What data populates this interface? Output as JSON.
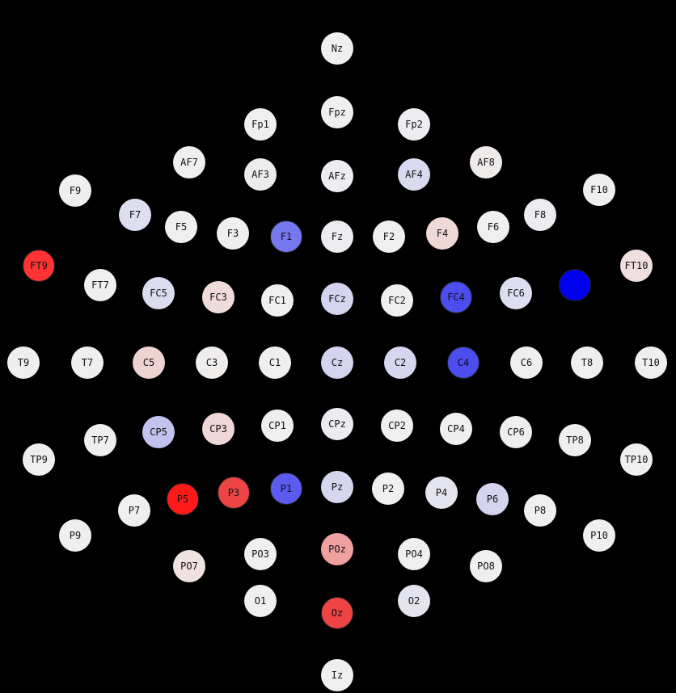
{
  "colors": {
    "background": "#000000",
    "neutral": "#efefef",
    "positive": "#ff2020",
    "negative": "#1010ff"
  },
  "electrodes": [
    {
      "label": "Nz",
      "fill": "#efefef"
    },
    {
      "label": "Fpz",
      "fill": "#efefef"
    },
    {
      "label": "Fp1",
      "fill": "#efefef"
    },
    {
      "label": "Fp2",
      "fill": "#ececf1"
    },
    {
      "label": "AF7",
      "fill": "#efefef"
    },
    {
      "label": "AF8",
      "fill": "#efebea"
    },
    {
      "label": "AF3",
      "fill": "#ececed"
    },
    {
      "label": "AFz",
      "fill": "#ececf1"
    },
    {
      "label": "AF4",
      "fill": "#d9d9ef"
    },
    {
      "label": "F9",
      "fill": "#efefef"
    },
    {
      "label": "F10",
      "fill": "#efefef"
    },
    {
      "label": "F7",
      "fill": "#dedef1"
    },
    {
      "label": "F8",
      "fill": "#ececf0"
    },
    {
      "label": "F5",
      "fill": "#efefef"
    },
    {
      "label": "F6",
      "fill": "#efefef"
    },
    {
      "label": "F3",
      "fill": "#efefef"
    },
    {
      "label": "F1",
      "fill": "#7777ef",
      "strong": true
    },
    {
      "label": "Fz",
      "fill": "#ececf0"
    },
    {
      "label": "F2",
      "fill": "#efefef"
    },
    {
      "label": "F4",
      "fill": "#efd9d6"
    },
    {
      "label": "FT9",
      "fill": "#ff3333",
      "strong": true
    },
    {
      "label": "FT10",
      "fill": "#efe0df"
    },
    {
      "label": "FT7",
      "fill": "#efefef"
    },
    {
      "label": "FC5",
      "fill": "#dcdcef"
    },
    {
      "label": "FC3",
      "fill": "#efdcda"
    },
    {
      "label": "FC1",
      "fill": "#efefef"
    },
    {
      "label": "FCz",
      "fill": "#d4d4ef"
    },
    {
      "label": "FC2",
      "fill": "#efefef"
    },
    {
      "label": "FC4",
      "fill": "#4c4cef",
      "strong": true
    },
    {
      "label": "FC6",
      "fill": "#dedef1"
    },
    {
      "label": "",
      "fill": "#0000ee",
      "strong": true
    },
    {
      "label": "T9",
      "fill": "#efefef"
    },
    {
      "label": "T7",
      "fill": "#efefef"
    },
    {
      "label": "C5",
      "fill": "#efd2d2"
    },
    {
      "label": "C3",
      "fill": "#efecec"
    },
    {
      "label": "C1",
      "fill": "#efefef"
    },
    {
      "label": "Cz",
      "fill": "#d4d4ef"
    },
    {
      "label": "C2",
      "fill": "#d6d6ef"
    },
    {
      "label": "C4",
      "fill": "#4c4cef",
      "strong": true
    },
    {
      "label": "C6",
      "fill": "#efefef"
    },
    {
      "label": "T8",
      "fill": "#efefef"
    },
    {
      "label": "T10",
      "fill": "#efefef"
    },
    {
      "label": "TP7",
      "fill": "#efefef"
    },
    {
      "label": "CP5",
      "fill": "#c2c2ef"
    },
    {
      "label": "CP3",
      "fill": "#efd7d7"
    },
    {
      "label": "CP1",
      "fill": "#efefef"
    },
    {
      "label": "CPz",
      "fill": "#ececf0"
    },
    {
      "label": "CP2",
      "fill": "#efefef"
    },
    {
      "label": "CP4",
      "fill": "#efefef"
    },
    {
      "label": "CP6",
      "fill": "#efefef"
    },
    {
      "label": "TP8",
      "fill": "#efefef"
    },
    {
      "label": "TP9",
      "fill": "#efefef"
    },
    {
      "label": "TP10",
      "fill": "#efefef"
    },
    {
      "label": "P5",
      "fill": "#ff1a1a",
      "strong": true
    },
    {
      "label": "P3",
      "fill": "#ee4444",
      "strong": true
    },
    {
      "label": "P1",
      "fill": "#5b5bef",
      "strong": true
    },
    {
      "label": "Pz",
      "fill": "#d6d6ef"
    },
    {
      "label": "P2",
      "fill": "#efefef"
    },
    {
      "label": "P4",
      "fill": "#e4e4ef"
    },
    {
      "label": "P6",
      "fill": "#d4d4ef"
    },
    {
      "label": "P7",
      "fill": "#efefef"
    },
    {
      "label": "P8",
      "fill": "#efefef"
    },
    {
      "label": "P9",
      "fill": "#efefef"
    },
    {
      "label": "P10",
      "fill": "#efefef"
    },
    {
      "label": "PO7",
      "fill": "#efe2e0"
    },
    {
      "label": "PO3",
      "fill": "#efefef"
    },
    {
      "label": "POz",
      "fill": "#efa0a0"
    },
    {
      "label": "PO4",
      "fill": "#efefef"
    },
    {
      "label": "PO8",
      "fill": "#efefef"
    },
    {
      "label": "O1",
      "fill": "#efefef"
    },
    {
      "label": "Oz",
      "fill": "#ee4444",
      "strong": true
    },
    {
      "label": "O2",
      "fill": "#e4e4ef"
    },
    {
      "label": "Iz",
      "fill": "#efefef"
    }
  ]
}
